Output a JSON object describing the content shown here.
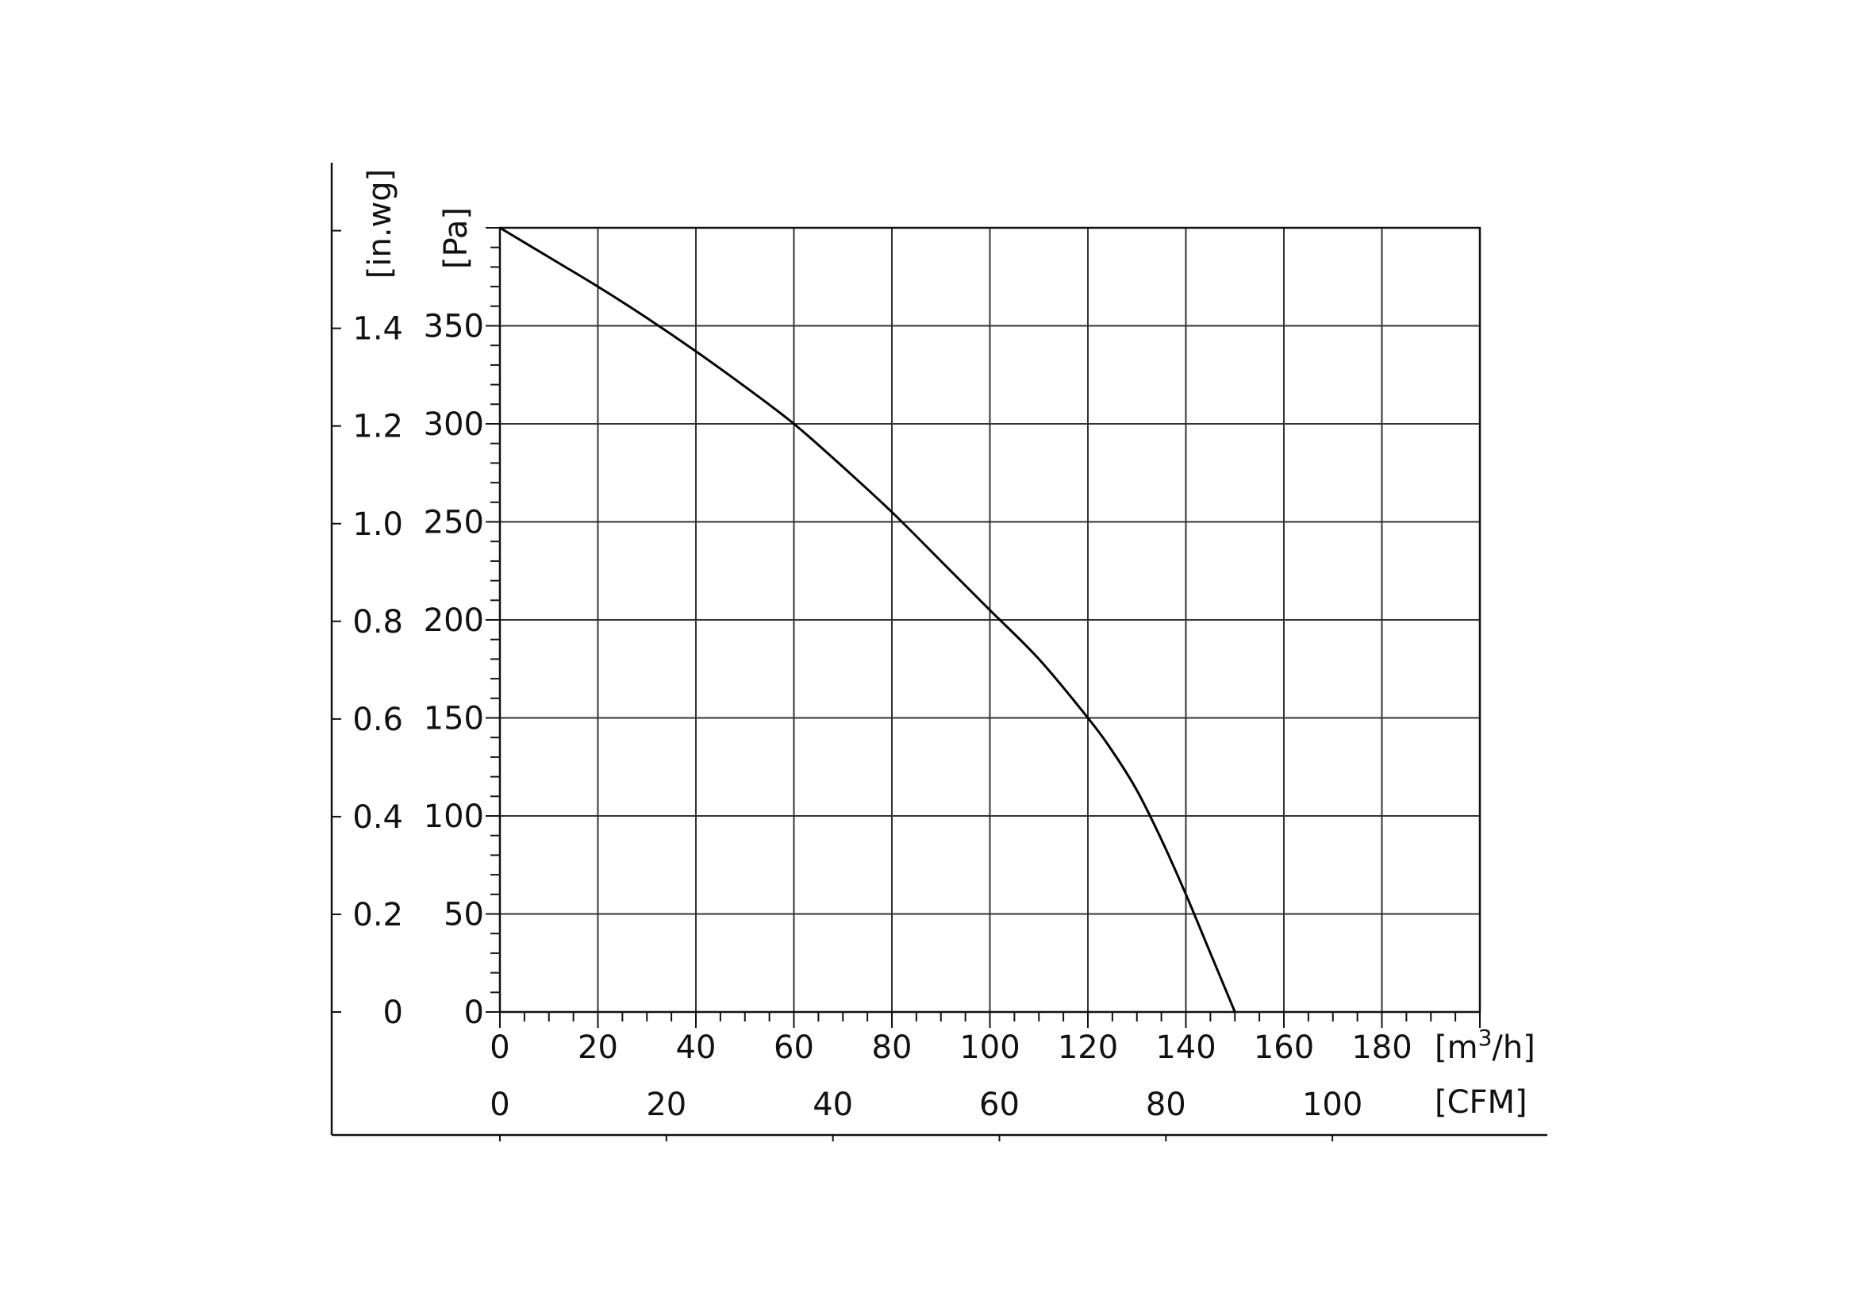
{
  "chart_data": {
    "type": "line",
    "title": "",
    "x_axis_primary": {
      "unit_label": "[m³/h]",
      "unit_base": "[m",
      "unit_sup": "3",
      "unit_tail": "/h]",
      "range": [
        0,
        200
      ],
      "ticks": [
        0,
        20,
        40,
        60,
        80,
        100,
        120,
        140,
        160,
        180
      ],
      "tick_labels": [
        "0",
        "20",
        "40",
        "60",
        "80",
        "100",
        "120",
        "140",
        "160",
        "180"
      ]
    },
    "x_axis_secondary": {
      "unit_label": "[CFM]",
      "ticks": [
        0,
        20,
        40,
        60,
        80,
        100
      ],
      "tick_labels": [
        "0",
        "20",
        "40",
        "60",
        "80",
        "100"
      ]
    },
    "y_axis_primary": {
      "unit_label": "[Pa]",
      "range": [
        0,
        400
      ],
      "ticks": [
        0,
        50,
        100,
        150,
        200,
        250,
        300,
        350
      ],
      "tick_labels": [
        "0",
        "50",
        "100",
        "150",
        "200",
        "250",
        "300",
        "350"
      ]
    },
    "y_axis_secondary": {
      "unit_label": "[in.wg]",
      "ticks": [
        0,
        0.2,
        0.4,
        0.6,
        0.8,
        1.0,
        1.2,
        1.4
      ],
      "tick_labels": [
        "0",
        "0.2",
        "0.4",
        "0.6",
        "0.8",
        "1.0",
        "1.2",
        "1.4"
      ]
    },
    "grid": true,
    "series": [
      {
        "x": [
          0,
          10,
          20,
          30,
          40,
          50,
          60,
          70,
          80,
          90,
          100,
          110,
          120,
          125,
          130,
          135,
          140,
          145,
          150
        ],
        "y": [
          400,
          385,
          370,
          354,
          337,
          319,
          300,
          278,
          255,
          230,
          205,
          180,
          150,
          133,
          113,
          88,
          60,
          30,
          0
        ]
      }
    ]
  }
}
